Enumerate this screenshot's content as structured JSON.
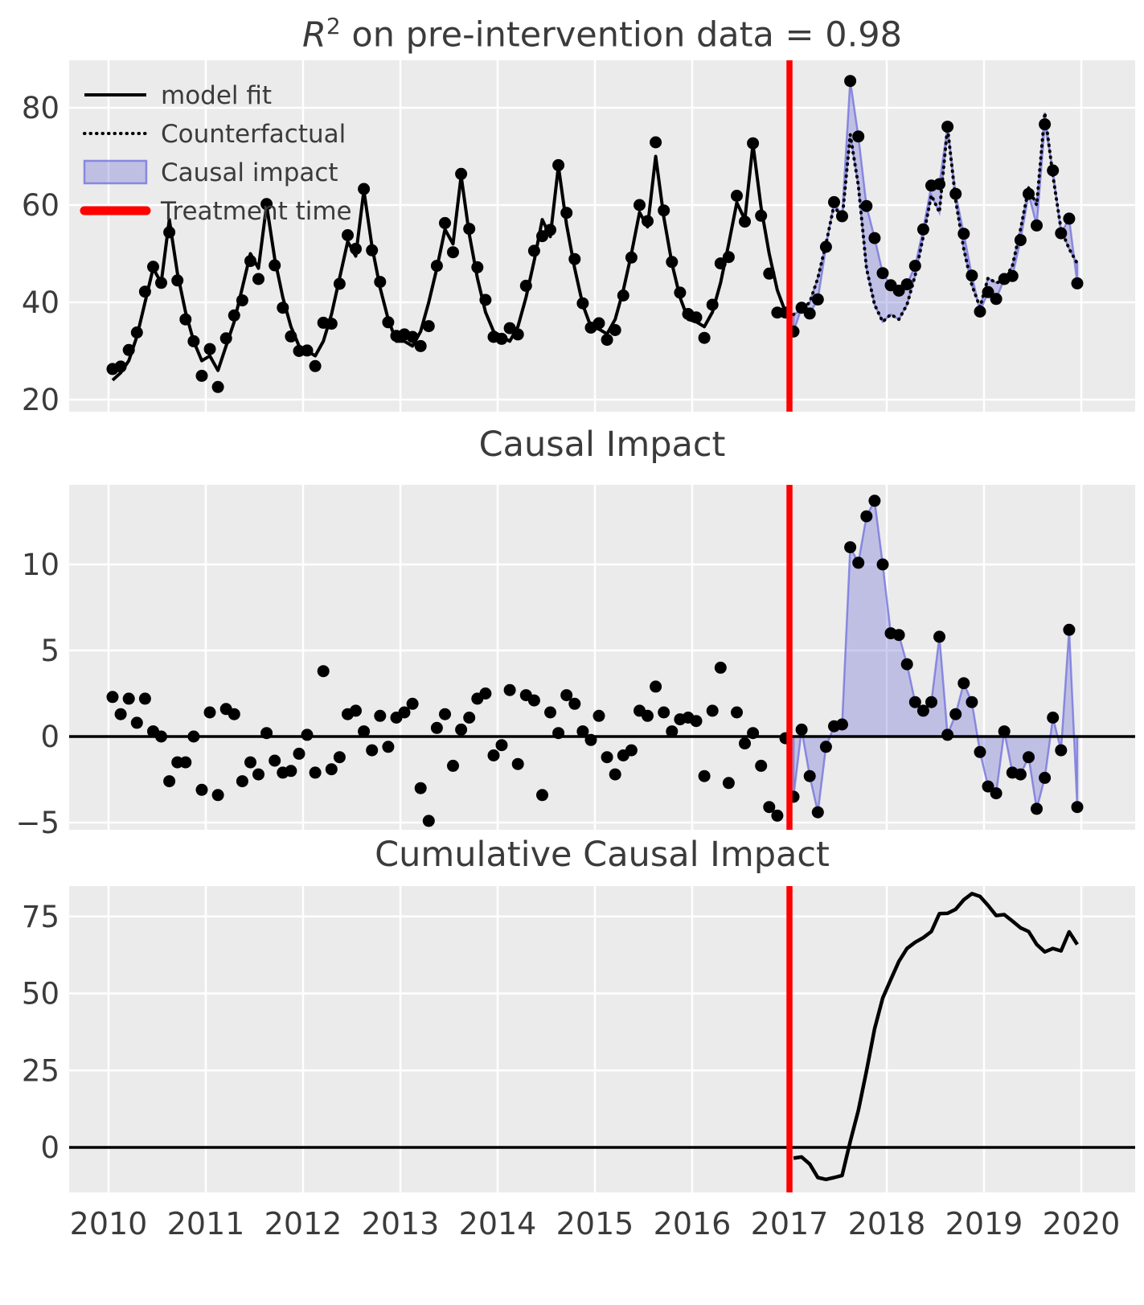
{
  "colors": {
    "background": "#ffffff",
    "plot_bg": "#ebebeb",
    "grid": "#ffffff",
    "series_line": "#000000",
    "marker": "#000000",
    "impact_fill": "rgba(100,100,215,0.32)",
    "impact_edge": "rgba(110,110,220,0.75)",
    "treatment_line": "#ff0000",
    "zero_line": "#000000",
    "text": "#3b3b3b"
  },
  "titles": {
    "p1_base": "R",
    "p1_sup": "2",
    "p1_rest": " on pre-intervention data = 0.98",
    "p2": "Causal Impact",
    "p3": "Cumulative Causal Impact"
  },
  "legend": [
    {
      "label": "model fit",
      "swatch": "solid-black-line"
    },
    {
      "label": "Counterfactual",
      "swatch": "dotted-black-line"
    },
    {
      "label": "Causal impact",
      "swatch": "blue-patch"
    },
    {
      "label": "Treatment time",
      "swatch": "thick-red-line"
    }
  ],
  "x_axis": {
    "ticks": [
      "2010",
      "2011",
      "2012",
      "2013",
      "2014",
      "2015",
      "2016",
      "2017",
      "2018",
      "2019",
      "2020"
    ],
    "tick_years": [
      2010,
      2011,
      2012,
      2013,
      2014,
      2015,
      2016,
      2017,
      2018,
      2019,
      2020
    ]
  },
  "treatment_time": 2017,
  "post_start_index": 84,
  "chart_data": [
    {
      "type": "line",
      "title": "R² on pre-intervention data = 0.98",
      "x_months": {
        "start": "2010-01",
        "end": "2019-12"
      },
      "yticks": [
        20,
        40,
        60,
        80
      ],
      "ylim": [
        17.8,
        89.8
      ],
      "legend_position": "upper left",
      "grid": true,
      "series": [
        {
          "name": "model fit",
          "style": "solid black",
          "months": "2010-01..2016-12",
          "values": [
            24,
            25.5,
            28,
            33,
            40,
            47,
            44,
            57,
            46,
            38,
            32,
            28,
            29,
            26,
            31,
            36,
            43,
            50,
            47,
            60,
            49,
            41,
            35,
            31,
            30,
            29,
            32,
            37.5,
            45,
            52.5,
            49.5,
            63,
            51.5,
            43,
            36.5,
            32,
            32,
            31,
            34,
            40,
            47,
            55,
            52,
            66,
            54,
            45,
            38,
            34,
            33,
            32,
            35,
            41,
            48.5,
            57,
            53.5,
            68,
            56,
            47,
            39.5,
            35,
            34.5,
            33.5,
            36.5,
            42.5,
            50,
            58.5,
            55.5,
            70,
            57.5,
            48,
            41,
            36.5,
            36,
            35,
            38,
            44,
            52,
            60.5,
            57,
            72.5,
            59.5,
            50,
            42.5,
            38
          ]
        },
        {
          "name": "Counterfactual",
          "style": "dotted black",
          "months": "2017-01..2019-12",
          "values": [
            37.5,
            38.5,
            40,
            45,
            52,
            60,
            57,
            74.5,
            64,
            47,
            39.5,
            36,
            37.5,
            36.5,
            39.5,
            45.5,
            53.5,
            62,
            58.5,
            76,
            61,
            51,
            43.5,
            39,
            45,
            44,
            44.5,
            47.5,
            55,
            63.5,
            60,
            79,
            66,
            55,
            51,
            48
          ]
        },
        {
          "name": "observed",
          "style": "black dots",
          "months": "2010-01..2019-12",
          "values": [
            26.3,
            26.8,
            30.2,
            33.8,
            42.2,
            47.3,
            44.0,
            54.4,
            44.5,
            36.5,
            32.0,
            24.9,
            30.4,
            22.6,
            32.6,
            37.3,
            40.4,
            48.5,
            44.8,
            60.2,
            47.6,
            38.9,
            33.0,
            30.0,
            30.1,
            26.9,
            35.8,
            35.6,
            43.8,
            53.8,
            51.0,
            63.3,
            50.7,
            44.2,
            35.9,
            33.1,
            33.4,
            32.9,
            31.0,
            35.1,
            47.5,
            56.3,
            50.3,
            66.4,
            55.1,
            47.2,
            40.5,
            32.9,
            32.5,
            34.7,
            33.4,
            43.4,
            50.6,
            53.6,
            54.9,
            68.2,
            58.4,
            48.9,
            39.8,
            34.8,
            35.7,
            32.3,
            34.3,
            41.4,
            49.2,
            60.0,
            56.7,
            72.9,
            58.9,
            48.3,
            42.0,
            37.6,
            36.9,
            32.7,
            39.5,
            48.0,
            49.3,
            61.9,
            56.6,
            72.7,
            57.8,
            45.9,
            37.9,
            37.9,
            34.0,
            38.9,
            37.7,
            40.6,
            51.4,
            60.6,
            57.7,
            85.5,
            74.1,
            59.8,
            53.2,
            46.0,
            43.5,
            42.4,
            43.7,
            47.5,
            55.0,
            64.0,
            64.3,
            76.1,
            62.3,
            54.1,
            45.5,
            38.1,
            42.1,
            40.7,
            44.8,
            45.4,
            52.8,
            62.3,
            55.8,
            76.6,
            67.1,
            54.2,
            57.2,
            43.9
          ]
        }
      ],
      "fill_between": {
        "upper": "observed (post)",
        "lower": "Counterfactual",
        "label": "Causal impact"
      }
    },
    {
      "type": "scatter",
      "title": "Causal Impact",
      "x_months": {
        "start": "2010-01",
        "end": "2019-12"
      },
      "yticks": [
        -5,
        0,
        5,
        10
      ],
      "ylim": [
        -5.4,
        14.6
      ],
      "zero_line": true,
      "grid": true,
      "fill_post_vs_zero": true,
      "series": [
        {
          "name": "pointwise causal impact",
          "style": "black dots, blue fill after treatment",
          "values": [
            2.3,
            1.3,
            2.2,
            0.8,
            2.2,
            0.3,
            0.0,
            -2.6,
            -1.5,
            -1.5,
            0.0,
            -3.1,
            1.4,
            -3.4,
            1.6,
            1.3,
            -2.6,
            -1.5,
            -2.2,
            0.2,
            -1.4,
            -2.1,
            -2.0,
            -1.0,
            0.1,
            -2.1,
            3.8,
            -1.9,
            -1.2,
            1.3,
            1.5,
            0.3,
            -0.8,
            1.2,
            -0.6,
            1.1,
            1.4,
            1.9,
            -3.0,
            -4.9,
            0.5,
            1.3,
            -1.7,
            0.4,
            1.1,
            2.2,
            2.5,
            -1.1,
            -0.5,
            2.7,
            -1.6,
            2.4,
            2.1,
            -3.4,
            1.4,
            0.2,
            2.4,
            1.9,
            0.3,
            -0.2,
            1.2,
            -1.2,
            -2.2,
            -1.1,
            -0.8,
            1.5,
            1.2,
            2.9,
            1.4,
            0.3,
            1.0,
            1.1,
            0.9,
            -2.3,
            1.5,
            4.0,
            -2.7,
            1.4,
            -0.4,
            0.2,
            -1.7,
            -4.1,
            -4.6,
            -0.1,
            -3.5,
            0.4,
            -2.3,
            -4.4,
            -0.6,
            0.6,
            0.7,
            11.0,
            10.1,
            12.8,
            13.7,
            10.0,
            6.0,
            5.9,
            4.2,
            2.0,
            1.5,
            2.0,
            5.8,
            0.1,
            1.3,
            3.1,
            2.0,
            -0.9,
            -2.9,
            -3.3,
            0.3,
            -2.1,
            -2.2,
            -1.2,
            -4.2,
            -2.4,
            1.1,
            -0.8,
            6.2,
            -4.1
          ]
        }
      ]
    },
    {
      "type": "line",
      "title": "Cumulative Causal Impact",
      "x_months": {
        "start": "2017-01",
        "end": "2019-12"
      },
      "yticks": [
        0,
        25,
        50,
        75
      ],
      "ylim": [
        -14.6,
        84.9
      ],
      "zero_line": true,
      "grid": true,
      "series": [
        {
          "name": "cumulative causal impact",
          "style": "solid black",
          "values": [
            -3.5,
            -3.1,
            -5.4,
            -9.8,
            -10.4,
            -9.8,
            -9.1,
            1.9,
            12.0,
            24.8,
            38.5,
            48.5,
            54.5,
            60.4,
            64.6,
            66.6,
            68.1,
            70.1,
            75.9,
            76.0,
            77.3,
            80.4,
            82.4,
            81.5,
            78.6,
            75.3,
            75.6,
            73.5,
            71.3,
            70.1,
            65.9,
            63.5,
            64.6,
            63.8,
            70.0,
            65.9
          ]
        }
      ]
    }
  ]
}
